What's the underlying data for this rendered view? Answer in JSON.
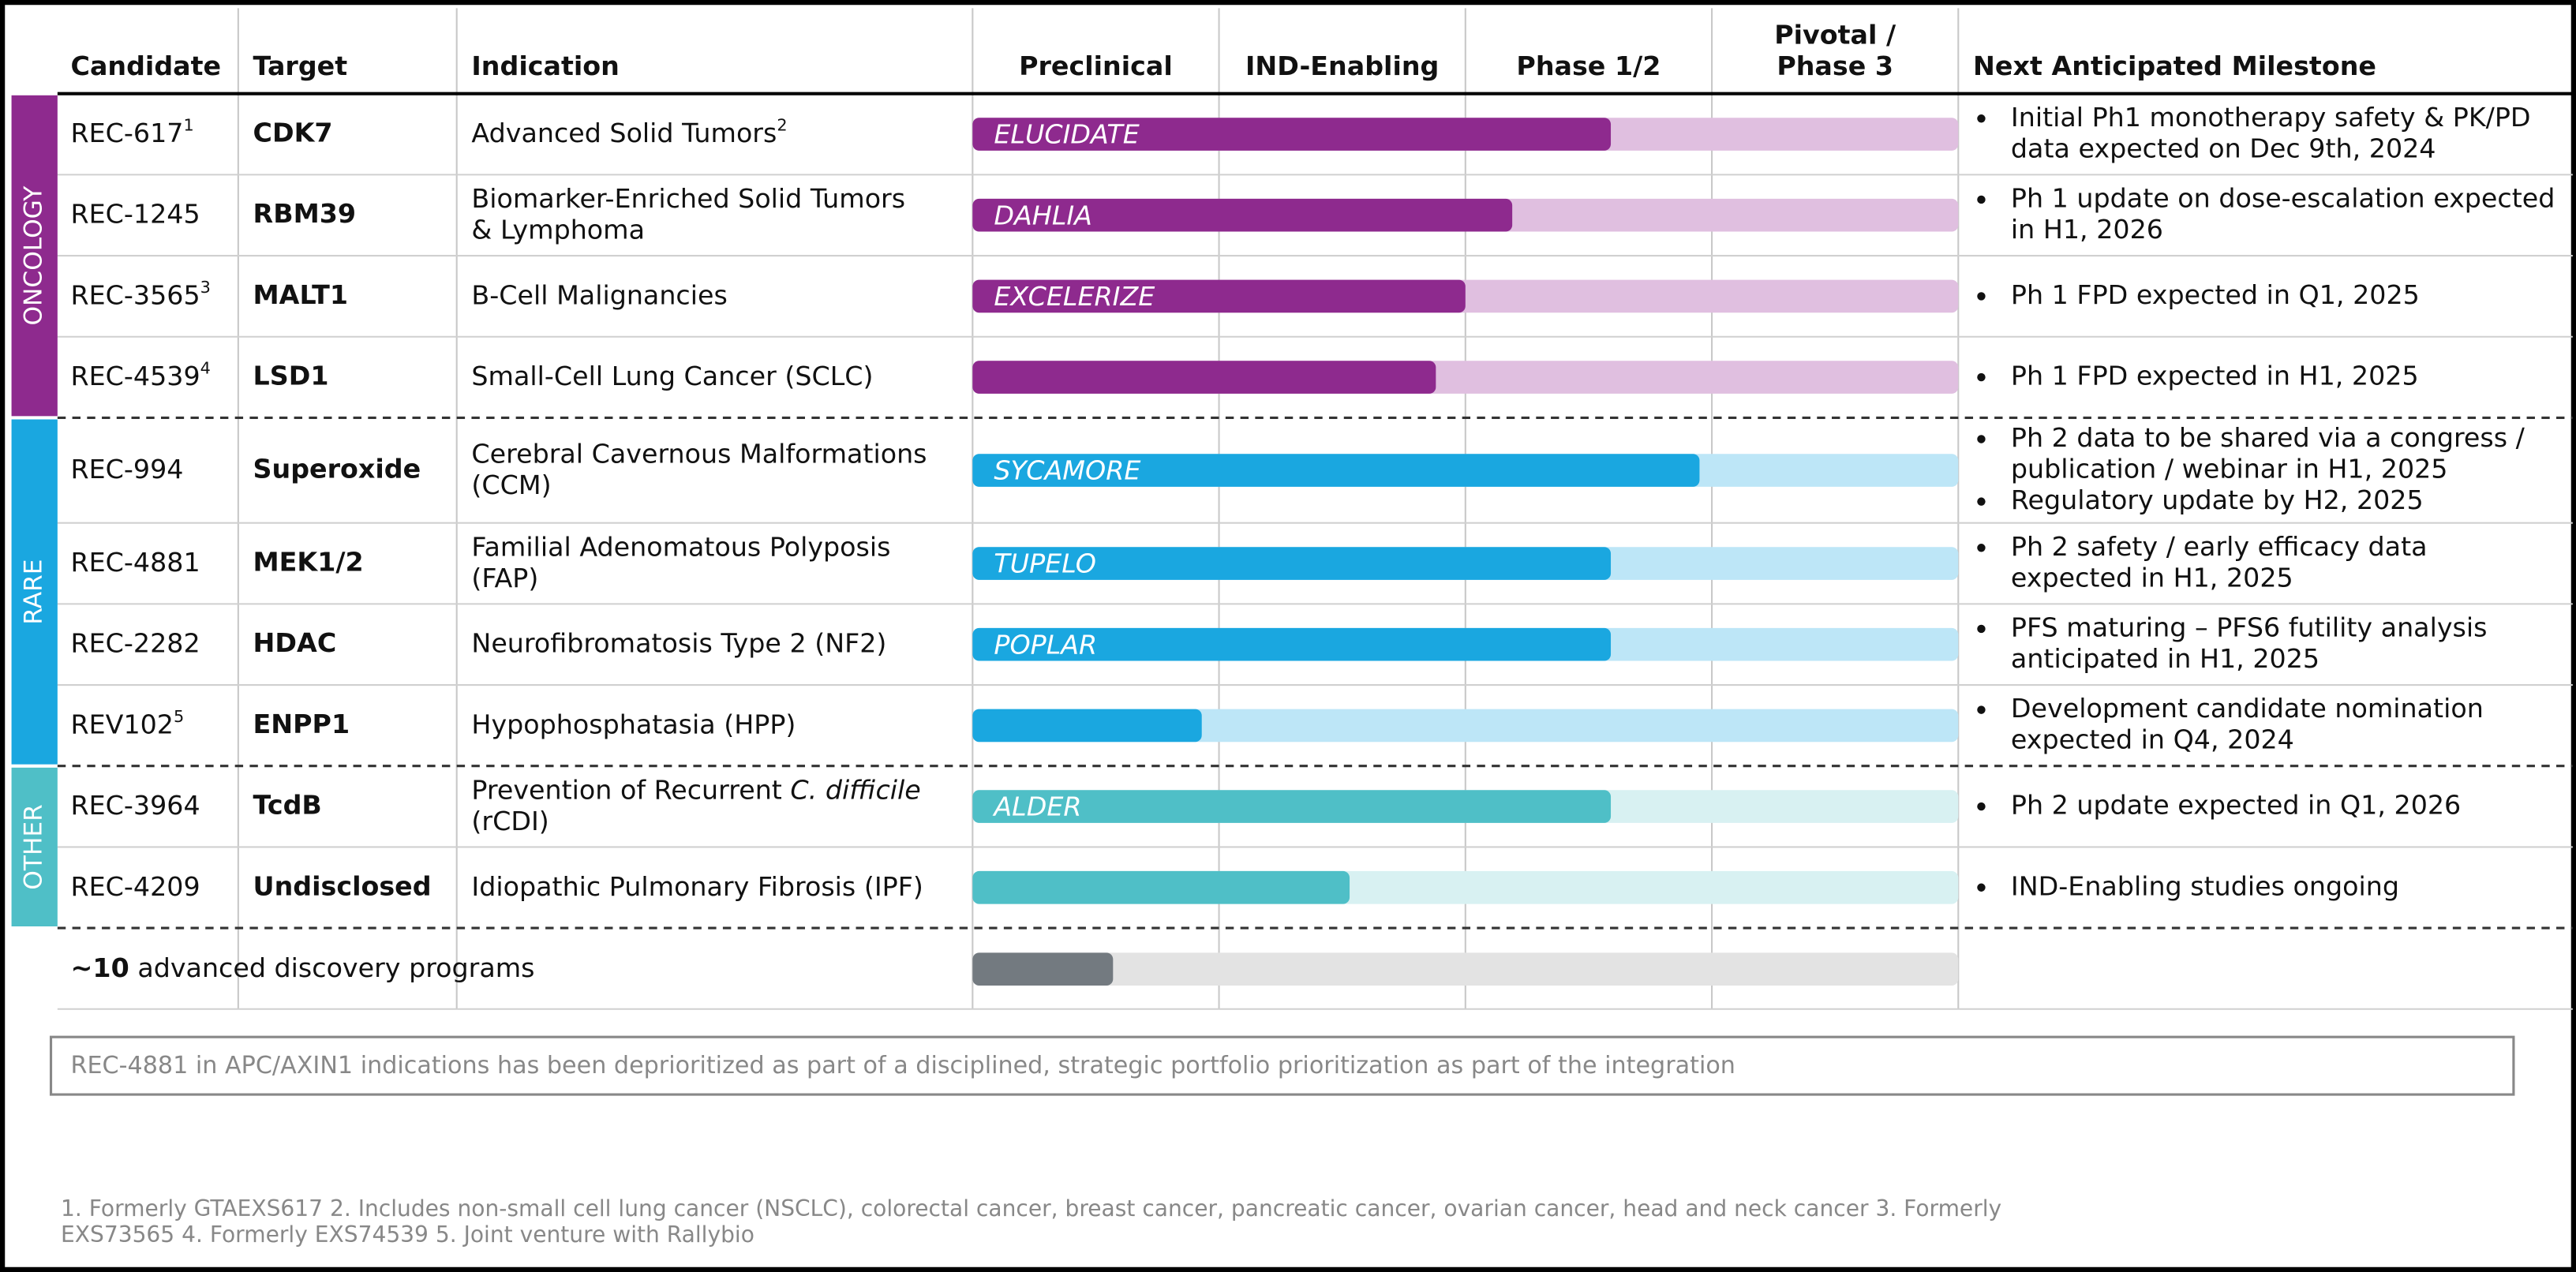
{
  "header": {
    "candidate": "Candidate",
    "target": "Target",
    "indication": "Indication",
    "stages": [
      "Preclinical",
      "IND-Enabling",
      "Phase 1/2",
      [
        "Pivotal /",
        "Phase 3"
      ]
    ],
    "milestone": "Next Anticipated Milestone"
  },
  "groups": [
    {
      "name": "ONCOLOGY",
      "color": "#8e2a8e",
      "light": "#e0bfe0",
      "rows": [
        {
          "candidate": "REC-617",
          "note": "1",
          "target": "CDK7",
          "indication": [
            "Advanced Solid Tumors"
          ],
          "indication_note": "2",
          "trial": "ELUCIDATE",
          "progress": 2.59,
          "milestones": [
            [
              "Initial Ph1 monotherapy safety & PK/PD",
              "data expected on Dec 9th, 2024"
            ]
          ]
        },
        {
          "candidate": "REC-1245",
          "target": "RBM39",
          "indication": [
            "Biomarker-Enriched Solid Tumors",
            "& Lymphoma"
          ],
          "trial": "DAHLIA",
          "progress": 2.19,
          "milestones": [
            [
              "Ph 1 update on dose-escalation expected",
              "in H1, 2026"
            ]
          ]
        },
        {
          "candidate": "REC-3565",
          "note": "3",
          "target": "MALT1",
          "indication": [
            "B-Cell Malignancies"
          ],
          "trial": "EXCELERIZE",
          "progress": 2.0,
          "milestones": [
            [
              "Ph 1 FPD expected in Q1, 2025"
            ]
          ]
        },
        {
          "candidate": "REC-4539",
          "note": "4",
          "target": "LSD1",
          "indication": [
            "Small-Cell Lung Cancer (SCLC)"
          ],
          "progress": 1.88,
          "milestones": [
            [
              "Ph 1 FPD expected in H1, 2025"
            ]
          ]
        }
      ]
    },
    {
      "name": "RARE",
      "color": "#1aa7e0",
      "light": "#bde6f7",
      "rows": [
        {
          "candidate": "REC-994",
          "target": "Superoxide",
          "indication": [
            "Cerebral Cavernous Malformations",
            "(CCM)"
          ],
          "trial": "SYCAMORE",
          "progress": 2.95,
          "milestones": [
            [
              "Ph 2 data to be shared via a congress /",
              "publication / webinar in H1, 2025"
            ],
            [
              "Regulatory update by H2, 2025"
            ]
          ]
        },
        {
          "candidate": "REC-4881",
          "target": "MEK1/2",
          "indication": [
            "Familial Adenomatous Polyposis",
            "(FAP)"
          ],
          "trial": "TUPELO",
          "progress": 2.59,
          "milestones": [
            [
              "Ph 2 safety / early efficacy data",
              "expected in H1, 2025"
            ]
          ]
        },
        {
          "candidate": "REC-2282",
          "target": "HDAC",
          "indication": [
            "Neurofibromatosis Type 2 (NF2)"
          ],
          "trial": "POPLAR",
          "progress": 2.59,
          "milestones": [
            [
              "PFS maturing – PFS6 futility analysis",
              "anticipated in H1, 2025"
            ]
          ]
        },
        {
          "candidate": "REV102",
          "note": "5",
          "target": "ENPP1",
          "indication": [
            "Hypophosphatasia (HPP)"
          ],
          "progress": 0.93,
          "milestones": [
            [
              "Development candidate nomination",
              "expected in Q4, 2024"
            ]
          ]
        }
      ]
    },
    {
      "name": "OTHER",
      "color": "#4fbfc7",
      "light": "#d8f1f2",
      "rows": [
        {
          "candidate": "REC-3964",
          "target": "TcdB",
          "indication": [
            "Prevention of Recurrent ",
            "(rCDI)"
          ],
          "indication_italic": "C. difficile",
          "trial": "ALDER",
          "progress": 2.59,
          "milestones": [
            [
              "Ph 2 update expected in Q1, 2026"
            ]
          ]
        },
        {
          "candidate": "REC-4209",
          "target": "Undisclosed",
          "indication": [
            "Idiopathic Pulmonary Fibrosis (IPF)"
          ],
          "progress": 1.53,
          "milestones": [
            [
              "IND-Enabling studies ongoing"
            ]
          ]
        }
      ]
    }
  ],
  "discovery": {
    "count": "~10",
    "text": " advanced discovery programs",
    "progress": 0.57,
    "color": "#737a80",
    "light": "#e3e3e3"
  },
  "note": "REC-4881 in APC/AXIN1 indications has been deprioritized as part of a disciplined, strategic portfolio prioritization as part of the integration",
  "footnotes": [
    "1. Formerly GTAEXS617 2. Includes non-small cell lung cancer (NSCLC), colorectal cancer, breast cancer, pancreatic cancer, ovarian cancer, head and neck cancer 3. Formerly",
    "EXS73565 4. Formerly EXS74539 5. Joint venture with Rallybio"
  ]
}
